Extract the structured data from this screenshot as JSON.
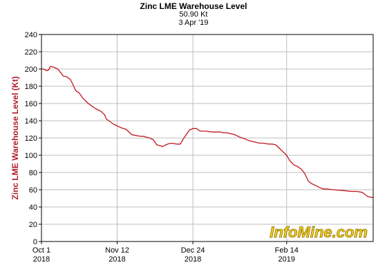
{
  "header": {
    "title": "Zinc LME Warehouse Level",
    "current_value": "50.90 Kt",
    "date": "3 Apr '19"
  },
  "watermark": "InfoMine.com",
  "colors": {
    "series": "#c0141c",
    "grid": "#bdbdbd",
    "ylabel": "#b01c2e",
    "watermark_fill": "#f4d21a",
    "watermark_outline": "#8a6a00"
  },
  "chart_data": {
    "type": "line",
    "title": "Zinc LME Warehouse Level",
    "ylabel": "Zinc LME Warehouse Level (Kt)",
    "xlabel": "",
    "ylim": [
      0,
      240
    ],
    "yticks": [
      0,
      20,
      40,
      60,
      80,
      100,
      120,
      140,
      160,
      180,
      200,
      220,
      240
    ],
    "xlim": [
      "2018-10-01",
      "2019-04-03"
    ],
    "xticks": [
      {
        "date": "2018-10-01",
        "line1": "Oct 1",
        "line2": "2018"
      },
      {
        "date": "2018-11-12",
        "line1": "Nov 12",
        "line2": "2018"
      },
      {
        "date": "2018-12-24",
        "line1": "Dec 24",
        "line2": "2018"
      },
      {
        "date": "2019-02-14",
        "line1": "Feb 14",
        "line2": "2019"
      }
    ],
    "grid": true,
    "series": [
      {
        "x": [
          "2018-10-01",
          "2018-10-02",
          "2018-10-04",
          "2018-10-05",
          "2018-10-06",
          "2018-10-08",
          "2018-10-10",
          "2018-10-12",
          "2018-10-13",
          "2018-10-15",
          "2018-10-17",
          "2018-10-18",
          "2018-10-20",
          "2018-10-22",
          "2018-10-24",
          "2018-10-27",
          "2018-10-29",
          "2018-10-31",
          "2018-11-02",
          "2018-11-03",
          "2018-11-04",
          "2018-11-05",
          "2018-11-06",
          "2018-11-10",
          "2018-11-12",
          "2018-11-13",
          "2018-11-14",
          "2018-11-17",
          "2018-11-19",
          "2018-11-20",
          "2018-11-22",
          "2018-11-25",
          "2018-11-27",
          "2018-11-28",
          "2018-11-30",
          "2018-12-02",
          "2018-12-04",
          "2018-12-06",
          "2018-12-07",
          "2018-12-08",
          "2018-12-09",
          "2018-12-10",
          "2018-12-12",
          "2018-12-15",
          "2018-12-17",
          "2018-12-19",
          "2018-12-21",
          "2018-12-22",
          "2018-12-23",
          "2018-12-24",
          "2018-12-26",
          "2018-12-28",
          "2018-12-31",
          "2019-01-04",
          "2019-01-08",
          "2019-01-10",
          "2019-01-12",
          "2019-01-14",
          "2019-01-16",
          "2019-01-19",
          "2019-01-22",
          "2019-01-24",
          "2019-01-26",
          "2019-01-28",
          "2019-01-30",
          "2019-02-01",
          "2019-02-04",
          "2019-02-06",
          "2019-02-08",
          "2019-02-10",
          "2019-02-12",
          "2019-02-14",
          "2019-02-16",
          "2019-02-18",
          "2019-02-20",
          "2019-02-22",
          "2019-02-24",
          "2019-02-26",
          "2019-02-28",
          "2019-03-02",
          "2019-03-04",
          "2019-03-06",
          "2019-03-08",
          "2019-03-12",
          "2019-03-18",
          "2019-03-22",
          "2019-03-25",
          "2019-03-28",
          "2019-03-31",
          "2019-04-03"
        ],
        "values": [
          200,
          200,
          198,
          199,
          203,
          202,
          200,
          195,
          192,
          191,
          188,
          184,
          175,
          172,
          166,
          160,
          157,
          154,
          152,
          151,
          149,
          147,
          142,
          136,
          134,
          133,
          132,
          130,
          126,
          124,
          123,
          122,
          122,
          121,
          120,
          118,
          112,
          111,
          110,
          111,
          112,
          113,
          114,
          113,
          113,
          120,
          126,
          129,
          130,
          131,
          131,
          128,
          128,
          127,
          127,
          126,
          126,
          125,
          124,
          121,
          119,
          117,
          116,
          115,
          114,
          114,
          113,
          113,
          112,
          108,
          104,
          100,
          93,
          89,
          87,
          84,
          79,
          70,
          67,
          65,
          63,
          61,
          61,
          60,
          59,
          58,
          58,
          57,
          52,
          51
        ]
      }
    ]
  }
}
